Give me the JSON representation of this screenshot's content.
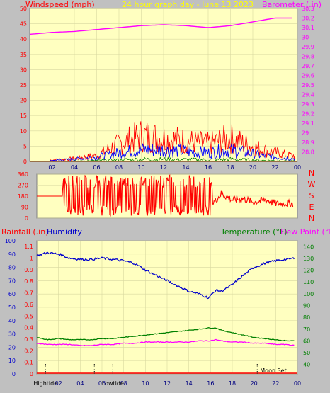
{
  "chart_data": [
    {
      "type": "line",
      "title": "24 hour graph day - June 13 2023",
      "ylabel_left": "Windspeed (mph)",
      "ylabel_right": "Barometer (.in)",
      "x_ticks": [
        "02",
        "04",
        "06",
        "08",
        "10",
        "12",
        "14",
        "16",
        "18",
        "20",
        "22",
        "00"
      ],
      "ylim_left": [
        0,
        50
      ],
      "yticks_left": [
        "0",
        "5",
        "10",
        "15",
        "20",
        "25",
        "30",
        "35",
        "40",
        "45",
        "50"
      ],
      "ylim_right": [
        28.7,
        30.3
      ],
      "yticks_right": [
        "28.8",
        "28.9",
        "29",
        "29.1",
        "29.2",
        "29.3",
        "29.4",
        "29.5",
        "29.6",
        "29.7",
        "29.8",
        "29.9",
        "30",
        "30.1",
        "30.2",
        "30.3"
      ],
      "x": [
        0,
        2,
        4,
        6,
        8,
        10,
        12,
        14,
        16,
        18,
        20,
        22,
        23.5
      ],
      "series": [
        {
          "name": "Barometer",
          "axis": "right",
          "color": "#ff00ff",
          "values": [
            30.03,
            30.05,
            30.06,
            30.08,
            30.1,
            30.12,
            30.13,
            30.12,
            30.1,
            30.12,
            30.16,
            30.2,
            30.2
          ]
        },
        {
          "name": "Wind Gust",
          "axis": "left",
          "color": "#ff0000",
          "values": [
            0,
            0.5,
            1,
            2,
            6,
            9,
            8,
            7,
            6,
            8,
            5,
            3,
            2
          ]
        },
        {
          "name": "Wind Avg",
          "axis": "left",
          "color": "#0000ff",
          "values": [
            0,
            0.3,
            0.8,
            1.5,
            3,
            4,
            4,
            3.5,
            3,
            4,
            2.5,
            1.5,
            1
          ]
        }
      ],
      "grid": true,
      "background": "#ffffc0"
    },
    {
      "type": "scatter",
      "title": "",
      "ylim": [
        0,
        360
      ],
      "yticks": [
        "0",
        "90",
        "180",
        "270",
        "360"
      ],
      "compass_labels": [
        "N",
        "W",
        "S",
        "E",
        "N"
      ],
      "x_ticks": [],
      "x": [
        0,
        2.5,
        3,
        4,
        5,
        6,
        7,
        8,
        9,
        10,
        11,
        12,
        13,
        14,
        15,
        16,
        17,
        18,
        19,
        20,
        21,
        22,
        23.5
      ],
      "series": [
        {
          "name": "Wind Direction",
          "color": "#ff0000",
          "values": [
            180,
            180,
            350,
            60,
            350,
            30,
            340,
            60,
            340,
            180,
            320,
            90,
            300,
            150,
            330,
            100,
            200,
            150,
            160,
            130,
            150,
            120,
            120
          ]
        }
      ],
      "grid": true,
      "background": "#ffffc0"
    },
    {
      "type": "line",
      "ylabel_left": "Rainfall (.in)",
      "ylabel_left2": "Humidity",
      "ylabel_right": "Temperature (°F)",
      "ylabel_right2": "Dew Point (°F)",
      "x_ticks": [
        "02",
        "04",
        "06",
        "08",
        "10",
        "12",
        "14",
        "16",
        "18",
        "20",
        "22",
        "00"
      ],
      "yticks_rain": [
        "0",
        "0.1",
        "0.2",
        "0.3",
        "0.4",
        "0.5",
        "0.6",
        "0.7",
        "0.8",
        "0.9",
        "1",
        "1.1"
      ],
      "yticks_humidity": [
        "0",
        "10",
        "20",
        "30",
        "40",
        "50",
        "60",
        "70",
        "80",
        "90",
        "100"
      ],
      "yticks_temp": [
        "40",
        "50",
        "60",
        "70",
        "80",
        "90",
        "100",
        "110",
        "120",
        "130",
        "140"
      ],
      "ylim_humidity": [
        0,
        100
      ],
      "ylim_temp": [
        32,
        145
      ],
      "x": [
        0,
        1,
        2,
        3,
        4,
        5,
        6,
        7,
        8,
        9,
        10,
        11,
        12,
        13,
        14,
        15,
        15.8,
        16.5,
        17,
        18,
        19,
        20,
        21,
        22,
        23,
        23.8
      ],
      "series": [
        {
          "name": "Humidity",
          "axis": "humidity",
          "color": "#0000cc",
          "values": [
            89,
            91,
            90,
            87,
            86,
            86,
            87,
            86,
            85,
            83,
            78,
            74,
            70,
            66,
            62,
            60,
            57,
            63,
            62,
            67,
            74,
            80,
            83,
            85,
            86,
            87
          ]
        },
        {
          "name": "Temperature",
          "axis": "temp",
          "color": "#008000",
          "values": [
            63,
            61,
            62,
            61,
            61,
            61,
            62,
            62,
            63,
            64,
            65,
            66,
            67,
            68,
            69,
            70,
            71,
            71,
            69,
            67,
            65,
            63,
            62,
            61,
            60,
            60
          ]
        },
        {
          "name": "Dew Point",
          "axis": "temp",
          "color": "#ff00ff",
          "values": [
            58,
            57,
            57,
            57,
            56,
            56,
            57,
            57,
            58,
            58,
            59,
            59,
            59,
            59,
            59,
            60,
            60,
            61,
            60,
            59,
            59,
            58,
            58,
            57,
            57,
            56
          ]
        }
      ],
      "markers": [
        {
          "label": "Hightide",
          "x": 0.8
        },
        {
          "label": "Lowtide",
          "x": 7.0
        },
        {
          "label": "Moon Set",
          "x": 20.3
        }
      ],
      "marker_extra_ticks": [
        5.3
      ],
      "grid": true,
      "background": "#ffffc0"
    }
  ]
}
